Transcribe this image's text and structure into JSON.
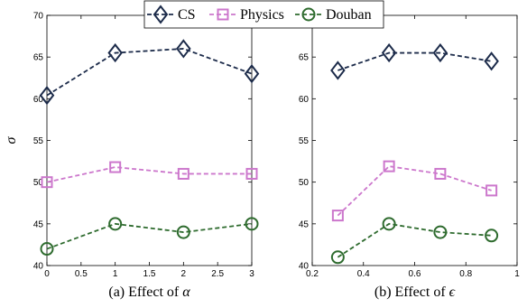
{
  "chart_data": [
    {
      "type": "line",
      "title": "",
      "caption_prefix": "(a) Effect of ",
      "caption_symbol": "α",
      "ylabel": "σ",
      "xlabel": "",
      "xlim": [
        0,
        3
      ],
      "ylim": [
        40,
        70
      ],
      "xticks": [
        0,
        0.5,
        1,
        1.5,
        2,
        2.5,
        3
      ],
      "xtick_labels": [
        "0",
        "0.5",
        "1",
        "1.5",
        "2",
        "2.5",
        "3"
      ],
      "yticks": [
        40,
        45,
        50,
        55,
        60,
        65,
        70
      ],
      "ytick_labels": [
        "40",
        "45",
        "50",
        "55",
        "60",
        "65",
        "70"
      ],
      "x": [
        0,
        1,
        2,
        3
      ],
      "series": [
        {
          "name": "CS",
          "color": "#1c2b4a",
          "marker": "diamond",
          "values": [
            60.4,
            65.5,
            66.0,
            63.0
          ]
        },
        {
          "name": "Physics",
          "color": "#cc77cc",
          "marker": "square",
          "values": [
            50.0,
            51.8,
            51.0,
            51.0
          ]
        },
        {
          "name": "Douban",
          "color": "#2e6b2e",
          "marker": "circle",
          "values": [
            42.0,
            45.0,
            44.0,
            45.0
          ]
        }
      ]
    },
    {
      "type": "line",
      "title": "",
      "caption_prefix": "(b) Effect of ",
      "caption_symbol": "ϵ",
      "ylabel": "",
      "xlabel": "",
      "xlim": [
        0.2,
        1
      ],
      "ylim": [
        40,
        70
      ],
      "xticks": [
        0.2,
        0.4,
        0.6,
        0.8,
        1
      ],
      "xtick_labels": [
        "0.2",
        "0.4",
        "0.6",
        "0.8",
        "1"
      ],
      "yticks": [
        40,
        45,
        50,
        55,
        60,
        65
      ],
      "ytick_labels": [
        "40",
        "45",
        "50",
        "55",
        "60",
        "65"
      ],
      "x": [
        0.3,
        0.5,
        0.7,
        0.9
      ],
      "series": [
        {
          "name": "CS",
          "color": "#1c2b4a",
          "marker": "diamond",
          "values": [
            63.4,
            65.5,
            65.5,
            64.5
          ]
        },
        {
          "name": "Physics",
          "color": "#cc77cc",
          "marker": "square",
          "values": [
            46.0,
            51.9,
            51.0,
            49.0
          ]
        },
        {
          "name": "Douban",
          "color": "#2e6b2e",
          "marker": "circle",
          "values": [
            41.0,
            45.0,
            44.0,
            43.6
          ]
        }
      ]
    }
  ],
  "legend": {
    "placement": "top-center",
    "entries": [
      {
        "label": "CS",
        "color": "#1c2b4a",
        "marker": "diamond"
      },
      {
        "label": "Physics",
        "color": "#cc77cc",
        "marker": "square"
      },
      {
        "label": "Douban",
        "color": "#2e6b2e",
        "marker": "circle"
      }
    ]
  }
}
